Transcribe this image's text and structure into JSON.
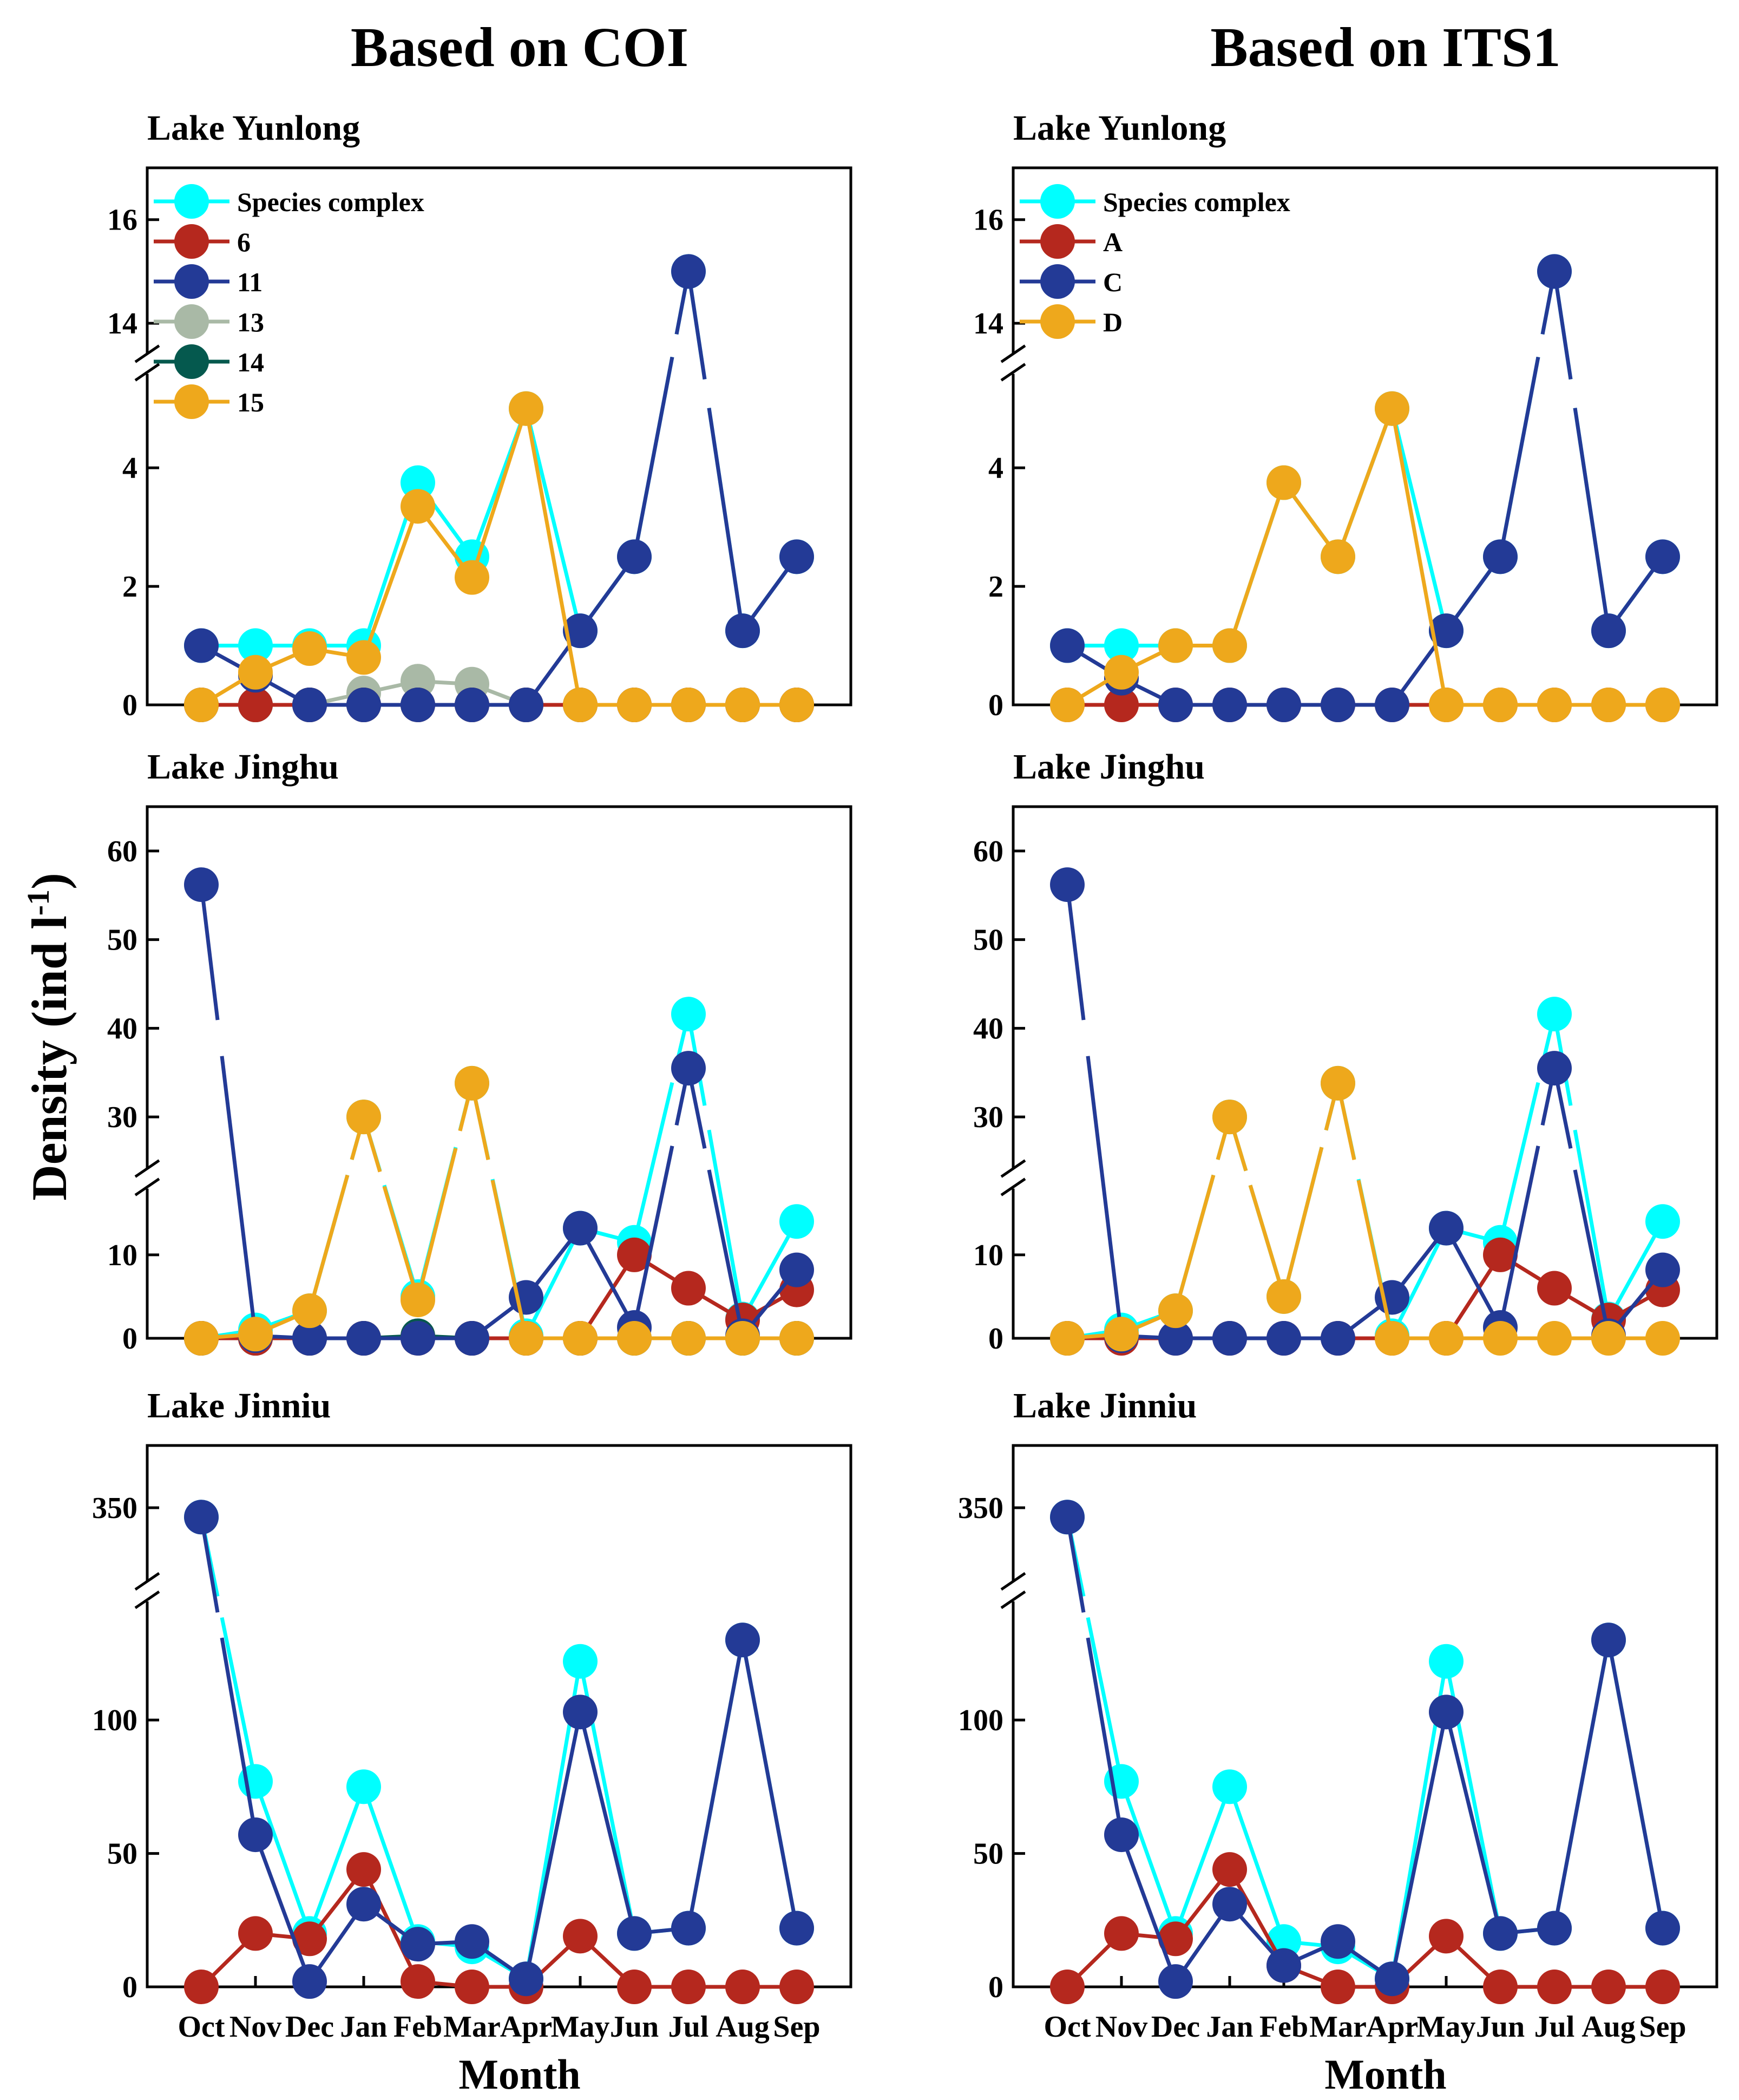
{
  "column_titles": [
    "Based on COI",
    "Based on ITS1"
  ],
  "ylabel": "Density (ind l-1)",
  "xlabel": "Month",
  "months": [
    "Oct",
    "Nov",
    "Dec",
    "Jan",
    "Feb",
    "Mar",
    "Apr",
    "May",
    "Jun",
    "Jul",
    "Aug",
    "Sep"
  ],
  "colors": {
    "species_complex": "#00ffff",
    "6": "#b5281e",
    "11": "#233a96",
    "13": "#a9b9a6",
    "14": "#05594e",
    "15": "#eea81c",
    "A": "#b5281e",
    "C": "#233a96",
    "D": "#eea81c"
  },
  "chart_data": [
    {
      "type": "line",
      "column": "Based on COI",
      "title": "Lake Yunlong",
      "axis_break": {
        "lower": [
          0,
          5.5
        ],
        "upper": [
          13.5,
          17
        ]
      },
      "yticks_lower": [
        0,
        2,
        4
      ],
      "yticks_upper": [
        14,
        16
      ],
      "legend": [
        "Species complex",
        "6",
        "11",
        "13",
        "14",
        "15"
      ],
      "series": [
        {
          "name": "Species complex",
          "values": [
            1,
            1,
            1,
            1,
            3.75,
            2.5,
            5,
            1.25,
            2.5,
            15,
            1.25,
            2.5
          ]
        },
        {
          "name": "6",
          "values": [
            0,
            0,
            0,
            0,
            0,
            0,
            0,
            0,
            0,
            0,
            0,
            0
          ]
        },
        {
          "name": "11",
          "values": [
            1,
            0.5,
            0,
            0,
            0,
            0,
            0,
            1.25,
            2.5,
            15,
            1.25,
            2.5
          ]
        },
        {
          "name": "13",
          "values": [
            0,
            0,
            0,
            0.2,
            0.4,
            0.35,
            0,
            0,
            0,
            0,
            0,
            0
          ]
        },
        {
          "name": "14",
          "values": [
            0,
            0,
            0,
            0,
            0,
            0,
            0,
            0,
            0,
            0,
            0,
            0
          ]
        },
        {
          "name": "15",
          "values": [
            0,
            0.55,
            0.95,
            0.8,
            3.35,
            2.15,
            5,
            0,
            0,
            0,
            0,
            0
          ]
        }
      ]
    },
    {
      "type": "line",
      "column": "Based on ITS1",
      "title": "Lake Yunlong",
      "axis_break": {
        "lower": [
          0,
          5.5
        ],
        "upper": [
          13.5,
          17
        ]
      },
      "yticks_lower": [
        0,
        2,
        4
      ],
      "yticks_upper": [
        14,
        16
      ],
      "legend": [
        "Species complex",
        "A",
        "C",
        "D"
      ],
      "series": [
        {
          "name": "Species complex",
          "values": [
            1,
            1,
            1,
            1,
            3.75,
            2.5,
            5,
            1.25,
            2.5,
            15,
            1.25,
            2.5
          ]
        },
        {
          "name": "A",
          "values": [
            0,
            0,
            0,
            0,
            0,
            0,
            0,
            0,
            0,
            0,
            0,
            0
          ]
        },
        {
          "name": "C",
          "values": [
            1,
            0.45,
            0,
            0,
            0,
            0,
            0,
            1.25,
            2.5,
            15,
            1.25,
            2.5
          ]
        },
        {
          "name": "D",
          "values": [
            0,
            0.55,
            1,
            1,
            3.75,
            2.5,
            5,
            0,
            0,
            0,
            0,
            0
          ]
        }
      ]
    },
    {
      "type": "line",
      "column": "Based on COI",
      "title": "Lake Jinghu",
      "axis_break": {
        "lower": [
          0,
          17
        ],
        "upper": [
          25,
          65
        ]
      },
      "yticks_lower": [
        0,
        10
      ],
      "yticks_upper": [
        30,
        40,
        50,
        60
      ],
      "series": [
        {
          "name": "Species complex",
          "values": [
            0,
            1,
            3.3,
            30,
            5,
            33.8,
            0.3,
            13.2,
            11.5,
            41.6,
            2.3,
            14
          ]
        },
        {
          "name": "6",
          "values": [
            0,
            0,
            0,
            0,
            0,
            0,
            0,
            0,
            10,
            6,
            2.2,
            5.8
          ]
        },
        {
          "name": "11",
          "values": [
            56.2,
            0.3,
            0,
            0,
            0,
            0,
            4.9,
            13.2,
            1.3,
            35.5,
            0.3,
            8.2
          ]
        },
        {
          "name": "13",
          "values": [
            0,
            0,
            0,
            0,
            0,
            0,
            0,
            0,
            0,
            0,
            0,
            0
          ]
        },
        {
          "name": "14",
          "values": [
            0,
            0,
            0,
            0,
            0.3,
            0,
            0,
            0,
            0,
            0,
            0,
            0
          ]
        },
        {
          "name": "15",
          "values": [
            0,
            0.5,
            3.3,
            30,
            4.6,
            33.8,
            0,
            0,
            0,
            0,
            0,
            0
          ]
        }
      ]
    },
    {
      "type": "line",
      "column": "Based on ITS1",
      "title": "Lake Jinghu",
      "axis_break": {
        "lower": [
          0,
          17
        ],
        "upper": [
          25,
          65
        ]
      },
      "yticks_lower": [
        0,
        10
      ],
      "yticks_upper": [
        30,
        40,
        50,
        60
      ],
      "series": [
        {
          "name": "Species complex",
          "values": [
            0,
            1,
            3.3,
            30,
            5,
            33.8,
            0.3,
            13.2,
            11.5,
            41.6,
            2.3,
            14
          ]
        },
        {
          "name": "A",
          "values": [
            0,
            0,
            0,
            0,
            0,
            0,
            0,
            0,
            10,
            6,
            2.2,
            5.8
          ]
        },
        {
          "name": "C",
          "values": [
            56.2,
            0.3,
            0,
            0,
            0,
            0,
            4.9,
            13.2,
            1.3,
            35.5,
            0.3,
            8.2
          ]
        },
        {
          "name": "D",
          "values": [
            0,
            0.5,
            3.3,
            30,
            5,
            33.8,
            0,
            0,
            0,
            0,
            0,
            0
          ]
        }
      ]
    },
    {
      "type": "line",
      "column": "Based on COI",
      "title": "Lake Jinniu",
      "axis_break": {
        "lower": [
          0,
          140
        ],
        "upper": [
          330,
          370
        ]
      },
      "yticks_lower": [
        0,
        50,
        100
      ],
      "yticks_upper": [
        350
      ],
      "series": [
        {
          "name": "Species complex",
          "values": [
            347,
            77,
            20,
            75,
            17,
            15,
            3,
            122,
            20,
            22,
            130,
            22
          ]
        },
        {
          "name": "6",
          "values": [
            0,
            20,
            18,
            44,
            2,
            0,
            0,
            19,
            0,
            0,
            0,
            0
          ]
        },
        {
          "name": "11",
          "values": [
            347,
            57,
            2,
            31,
            16,
            17,
            3,
            103,
            20,
            22,
            130,
            22
          ]
        }
      ]
    },
    {
      "type": "line",
      "column": "Based on ITS1",
      "title": "Lake Jinniu",
      "axis_break": {
        "lower": [
          0,
          140
        ],
        "upper": [
          330,
          370
        ]
      },
      "yticks_lower": [
        0,
        50,
        100
      ],
      "yticks_upper": [
        350
      ],
      "series": [
        {
          "name": "Species complex",
          "values": [
            347,
            77,
            20,
            75,
            17,
            15,
            3,
            122,
            20,
            22,
            130,
            22
          ]
        },
        {
          "name": "A",
          "values": [
            0,
            20,
            18,
            44,
            8,
            0,
            0,
            19,
            0,
            0,
            0,
            0
          ]
        },
        {
          "name": "C",
          "values": [
            347,
            57,
            2,
            31,
            8,
            17,
            3,
            103,
            20,
            22,
            130,
            22
          ]
        }
      ]
    }
  ]
}
